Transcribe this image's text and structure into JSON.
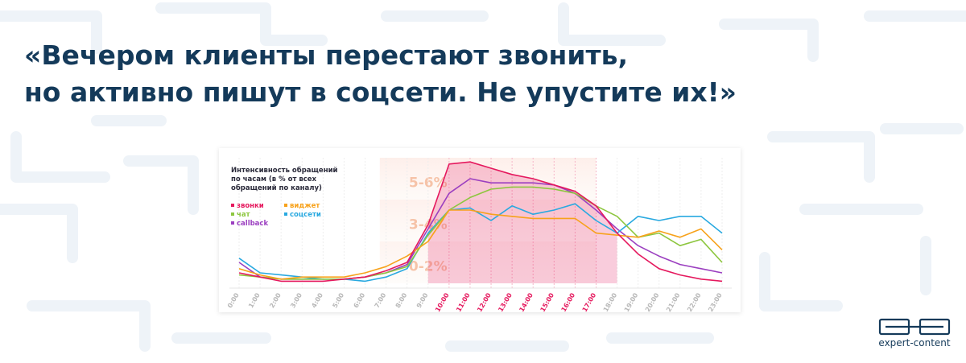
{
  "headline": [
    "«Вечером клиенты перестают звонить,",
    "но активно пишут в соцсети. Не упустите их!»"
  ],
  "brand": "expert-content",
  "chart_data": {
    "type": "line",
    "title": [
      "Интенсивность обращений",
      "по часам (в % от всех",
      "обращений по каналу)"
    ],
    "categories": [
      "0:00",
      "1:00",
      "2:00",
      "3:00",
      "4:00",
      "5:00",
      "6:00",
      "7:00",
      "8:00",
      "9:00",
      "10:00",
      "11:00",
      "12:00",
      "13:00",
      "14:00",
      "15:00",
      "16:00",
      "17:00",
      "18:00",
      "19:00",
      "20:00",
      "21:00",
      "22:00",
      "23:00"
    ],
    "highlighted_categories": [
      "10:00",
      "11:00",
      "12:00",
      "13:00",
      "14:00",
      "15:00",
      "16:00",
      "17:00"
    ],
    "highlight_color": "#e5195e",
    "bands": [
      "5-6%",
      "3-4%",
      "0-2%"
    ],
    "ylim": [
      0,
      6
    ],
    "series": [
      {
        "name": "звонки",
        "color": "#e5195e",
        "values": [
          0.5,
          0.3,
          0.1,
          0.1,
          0.1,
          0.2,
          0.3,
          0.6,
          1.0,
          2.8,
          5.7,
          5.8,
          5.5,
          5.2,
          5.0,
          4.7,
          4.4,
          3.7,
          2.4,
          1.4,
          0.7,
          0.4,
          0.2,
          0.1
        ]
      },
      {
        "name": "виджет",
        "color": "#f7a21b",
        "values": [
          0.7,
          0.4,
          0.2,
          0.3,
          0.3,
          0.3,
          0.5,
          0.8,
          1.3,
          2.0,
          3.5,
          3.5,
          3.3,
          3.2,
          3.1,
          3.1,
          3.1,
          2.4,
          2.3,
          2.2,
          2.5,
          2.2,
          2.6,
          1.6
        ]
      },
      {
        "name": "чат",
        "color": "#8dc63f",
        "values": [
          0.4,
          0.3,
          0.2,
          0.2,
          0.2,
          0.2,
          0.3,
          0.5,
          0.8,
          2.3,
          3.5,
          4.1,
          4.5,
          4.6,
          4.6,
          4.5,
          4.3,
          3.7,
          3.2,
          2.2,
          2.4,
          1.8,
          2.1,
          1.0
        ]
      },
      {
        "name": "соцсети",
        "color": "#29a9e0",
        "values": [
          1.2,
          0.5,
          0.4,
          0.3,
          0.2,
          0.2,
          0.1,
          0.3,
          0.7,
          2.4,
          3.5,
          3.6,
          3.0,
          3.7,
          3.3,
          3.5,
          3.8,
          3.0,
          2.4,
          3.2,
          3.0,
          3.2,
          3.2,
          2.4
        ]
      },
      {
        "name": "callback",
        "color": "#9b3fc0",
        "values": [
          1.0,
          0.3,
          0.2,
          0.2,
          0.2,
          0.2,
          0.3,
          0.5,
          0.9,
          2.6,
          4.3,
          5.0,
          4.8,
          4.8,
          4.8,
          4.7,
          4.3,
          3.5,
          2.6,
          1.8,
          1.3,
          0.9,
          0.7,
          0.5
        ]
      }
    ]
  }
}
